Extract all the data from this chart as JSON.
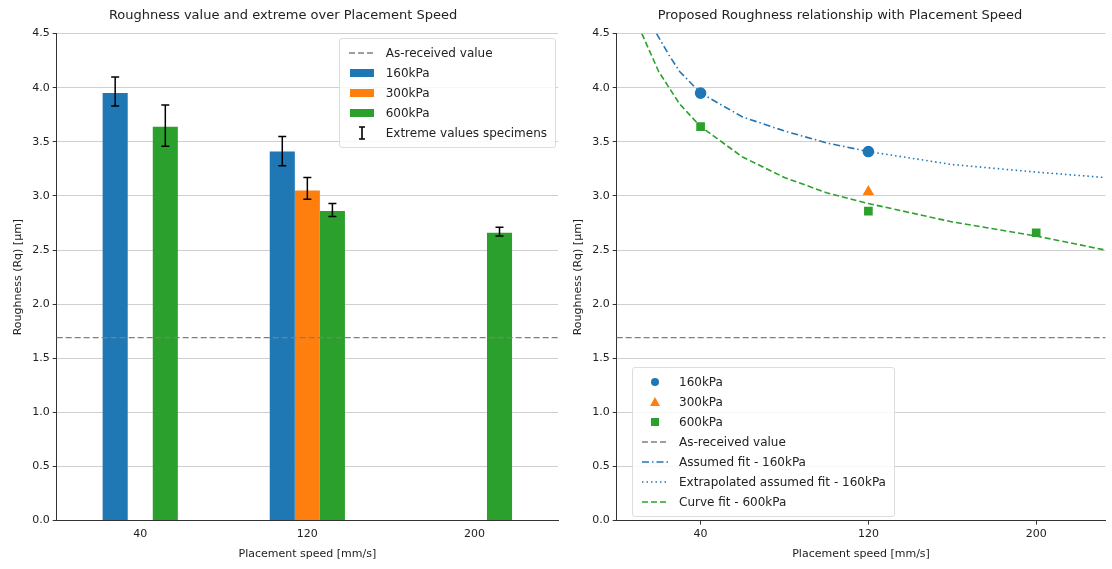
{
  "chart_data": [
    {
      "type": "bar",
      "title": "Roughness value and extreme over Placement Speed",
      "xlabel": "Placement speed [mm/s]",
      "ylabel": "Roughness (Rq) [µm]",
      "categories": [
        "40",
        "120",
        "200"
      ],
      "series": [
        {
          "name": "160kPa",
          "color": "#1f77b4",
          "values": [
            3.95,
            3.41,
            null
          ],
          "errors": [
            [
              3.83,
              4.1
            ],
            [
              3.28,
              3.55
            ],
            null
          ]
        },
        {
          "name": "300kPa",
          "color": "#ff7f0e",
          "values": [
            null,
            3.05,
            null
          ],
          "errors": [
            null,
            [
              2.97,
              3.17
            ],
            null
          ]
        },
        {
          "name": "600kPa",
          "color": "#2ca02c",
          "values": [
            3.64,
            2.86,
            2.66
          ],
          "errors": [
            [
              3.46,
              3.84
            ],
            [
              2.81,
              2.93
            ],
            [
              2.63,
              2.71
            ]
          ]
        }
      ],
      "ylim": [
        0,
        4.5
      ],
      "yticks": [
        {
          "value": 0,
          "label": "0.0"
        },
        0.5,
        {
          "value": 1,
          "label": "1.0"
        },
        1.5,
        {
          "value": 2,
          "label": "2.0"
        },
        2.5,
        {
          "value": 3,
          "label": "3.0"
        },
        3.5,
        {
          "value": 4,
          "label": "4.0"
        },
        4.5
      ],
      "ref_lines": [
        {
          "axis": "y",
          "value": 1.69,
          "label": "As-received value",
          "color": "#7f7f7f",
          "line_style": "dashed"
        }
      ],
      "annotations": [
        "Extreme values specimens"
      ],
      "grid": "y",
      "legend": "top right"
    },
    {
      "type": "scatter",
      "title": "Proposed Roughness relationship with Placement Speed",
      "xlabel": "Placement speed [mm/s]",
      "ylabel": "Roughness (Rq) [µm]",
      "series": [
        {
          "name": "160kPa",
          "color": "#1f77b4",
          "marker": "circle",
          "x": [
            40,
            120
          ],
          "values": [
            3.95,
            3.41
          ]
        },
        {
          "name": "300kPa",
          "color": "#ff7f0e",
          "marker": "triangle",
          "x": [
            120
          ],
          "values": [
            3.04
          ]
        },
        {
          "name": "600kPa",
          "color": "#2ca02c",
          "marker": "square",
          "x": [
            40,
            120,
            200
          ],
          "values": [
            3.64,
            2.86,
            2.66
          ]
        },
        {
          "name": "Assumed fit - 160kPa",
          "type": "line",
          "color": "#1f77b4",
          "line_style": "dashdot",
          "x": [
            19,
            25,
            30,
            40,
            60,
            80,
            100,
            120
          ],
          "values": [
            4.5,
            4.3,
            4.15,
            3.95,
            3.73,
            3.6,
            3.49,
            3.41
          ]
        },
        {
          "name": "Extrapolated assumed fit - 160kPa",
          "type": "line",
          "color": "#1f77b4",
          "line_style": "dotted",
          "x": [
            120,
            160,
            200,
            233
          ],
          "values": [
            3.41,
            3.29,
            3.22,
            3.17
          ]
        },
        {
          "name": "Curve fit - 600kPa",
          "type": "line",
          "color": "#2ca02c",
          "line_style": "dashed",
          "x": [
            12,
            20,
            30,
            40,
            60,
            80,
            100,
            120,
            160,
            200,
            233
          ],
          "values": [
            4.5,
            4.15,
            3.85,
            3.64,
            3.36,
            3.17,
            3.03,
            2.93,
            2.76,
            2.63,
            2.5
          ]
        }
      ],
      "xlim": [
        0,
        233
      ],
      "xticks": [
        40,
        120,
        200
      ],
      "ylim": [
        0,
        4.5
      ],
      "yticks": [
        {
          "value": 0,
          "label": "0.0"
        },
        0.5,
        {
          "value": 1,
          "label": "1.0"
        },
        1.5,
        {
          "value": 2,
          "label": "2.0"
        },
        2.5,
        {
          "value": 3,
          "label": "3.0"
        },
        3.5,
        {
          "value": 4,
          "label": "4.0"
        },
        4.5
      ],
      "ref_lines": [
        {
          "axis": "y",
          "value": 1.69,
          "label": "As-received value",
          "color": "#7f7f7f",
          "line_style": "dashed"
        }
      ],
      "grid": "y",
      "legend": "bottom left"
    }
  ]
}
